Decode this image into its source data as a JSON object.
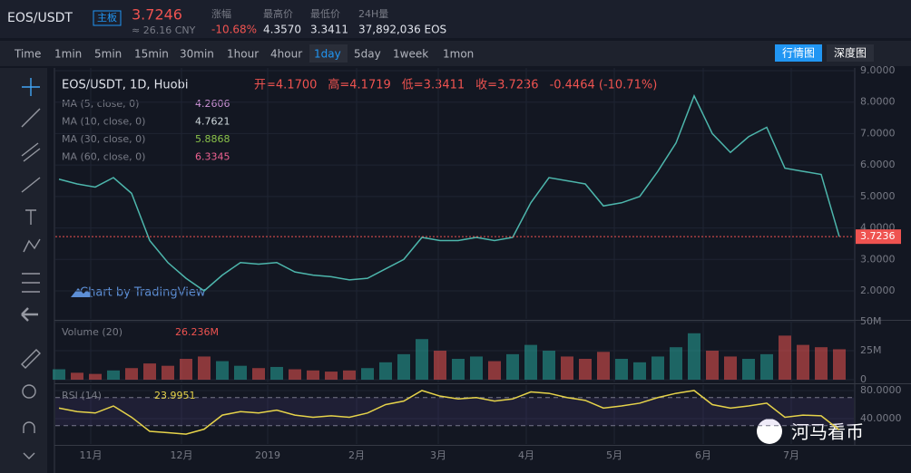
{
  "header": {
    "symbol": "EOS/USDT",
    "board": "主板",
    "price": "3.7246",
    "cny": "≈ 26.16 CNY",
    "stats": [
      {
        "label": "涨幅",
        "value": "-10.68%"
      },
      {
        "label": "最高价",
        "value": "4.3570"
      },
      {
        "label": "最低价",
        "value": "3.3411"
      },
      {
        "label": "24H量",
        "value": "37,892,036 EOS"
      }
    ]
  },
  "toolbar": {
    "intervals": [
      "Time",
      "1min",
      "5min",
      "15min",
      "30min",
      "1hour",
      "4hour",
      "1day",
      "5day",
      "1week",
      "1mon"
    ],
    "active": "1day",
    "views": [
      "行情图",
      "深度图"
    ]
  },
  "legend": {
    "title": "EOS/USDT, 1D, Huobi",
    "ohlc": [
      "开=4.1700",
      "高=4.1719",
      "低=3.3411",
      "收=3.7236",
      "-0.4464 (-10.71%)"
    ],
    "ma": [
      {
        "name": "MA (5, close, 0)",
        "value": "4.2606",
        "color": "#ce93d8"
      },
      {
        "name": "MA (10, close, 0)",
        "value": "4.7621",
        "color": "#cfd8dc"
      },
      {
        "name": "MA (30, close, 0)",
        "value": "5.8868",
        "color": "#8bc34a"
      },
      {
        "name": "MA (60, close, 0)",
        "value": "6.3345",
        "color": "#f06292"
      }
    ]
  },
  "watermarks": [
    "Chart by TradingView",
    "河马看币"
  ],
  "chart_data": [
    {
      "type": "line",
      "name": "price",
      "color": "#4db6ac",
      "ylim": [
        1.107,
        9.086
      ],
      "yticks": [
        {
          "value": 2,
          "label": "2.0000"
        },
        {
          "value": 3,
          "label": "3.0000"
        },
        {
          "value": 4,
          "label": "4.0000"
        },
        {
          "value": 5,
          "label": "5.0000"
        },
        {
          "value": 6,
          "label": "6.0000"
        },
        {
          "value": 7,
          "label": "7.0000"
        },
        {
          "value": 8,
          "label": "8.0000"
        },
        {
          "value": 9,
          "label": "9.0000"
        }
      ],
      "xticks": [
        {
          "value": 1.75,
          "label": "11月"
        },
        {
          "value": 6.75,
          "label": "12月"
        },
        {
          "value": 11.5,
          "label": "2019"
        },
        {
          "value": 16.4,
          "label": "2月"
        },
        {
          "value": 20.9,
          "label": "3月"
        },
        {
          "value": 25.75,
          "label": "4月"
        },
        {
          "value": 30.6,
          "label": "5月"
        },
        {
          "value": 35.5,
          "label": "6月"
        },
        {
          "value": 40.35,
          "label": "7月"
        }
      ],
      "values": [
        5.55,
        5.4,
        5.3,
        5.6,
        5.1,
        3.6,
        2.9,
        2.4,
        2.0,
        2.5,
        2.9,
        2.85,
        2.9,
        2.6,
        2.5,
        2.45,
        2.35,
        2.4,
        2.7,
        3.0,
        3.7,
        3.6,
        3.6,
        3.7,
        3.6,
        3.7,
        4.8,
        5.6,
        5.5,
        5.4,
        4.7,
        4.8,
        5.0,
        5.8,
        6.7,
        8.2,
        7.0,
        6.4,
        6.9,
        7.2,
        5.9,
        5.8,
        5.7,
        3.7236
      ]
    },
    {
      "type": "bar",
      "name": "Volume (20)",
      "current": "26.236M",
      "up_color": "#26a69a",
      "down_color": "#ef5350",
      "ylim": [
        -2.3,
        50
      ],
      "yticks": [
        {
          "value": 0,
          "label": "0"
        },
        {
          "value": 25,
          "label": "25M"
        },
        {
          "value": 50,
          "label": "50M"
        }
      ],
      "values": [
        9,
        6,
        5,
        8,
        10,
        14,
        12,
        18,
        20,
        16,
        12,
        10,
        11,
        9,
        8,
        7,
        8,
        10,
        15,
        22,
        35,
        25,
        18,
        20,
        16,
        22,
        30,
        25,
        20,
        18,
        24,
        18,
        15,
        20,
        28,
        40,
        25,
        20,
        18,
        22,
        38,
        30,
        28,
        26.236
      ]
    },
    {
      "type": "line",
      "name": "RSI (14)",
      "color": "#e6d34a",
      "ylim": [
        3.9,
        87.7
      ],
      "levels": [
        70,
        30
      ],
      "yticks": [
        {
          "value": 40,
          "label": "40.0000"
        },
        {
          "value": 80,
          "label": "80.0000"
        }
      ],
      "values": [
        55,
        50,
        48,
        58,
        42,
        22,
        20,
        18,
        25,
        45,
        50,
        48,
        52,
        45,
        42,
        44,
        42,
        48,
        60,
        65,
        80,
        72,
        68,
        70,
        65,
        68,
        78,
        76,
        70,
        66,
        55,
        58,
        62,
        70,
        76,
        80,
        60,
        55,
        58,
        62,
        42,
        45,
        44,
        23.9951
      ]
    }
  ]
}
